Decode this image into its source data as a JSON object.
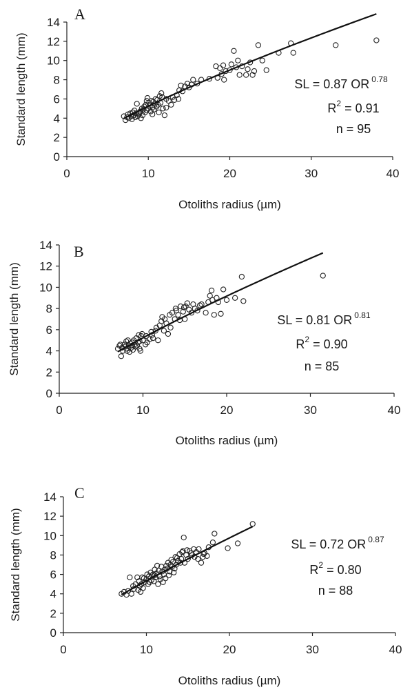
{
  "chart_data": [
    {
      "type": "scatter",
      "panel_label": "A",
      "xlabel": "Otoliths radius (µm)",
      "ylabel": "Standard length (mm)",
      "xlim": [
        0,
        40
      ],
      "ylim": [
        0,
        14
      ],
      "x_ticks": [
        "0",
        "10",
        "20",
        "30",
        "40"
      ],
      "y_ticks": [
        "0",
        "2",
        "4",
        "6",
        "8",
        "10",
        "12",
        "14"
      ],
      "equation": {
        "main": "SL = 0.87 OR",
        "exponent": "0.78",
        "r2_label": "R",
        "r2_sup": "2",
        "r2_value": " = 0.91",
        "n": "n = 95"
      },
      "fit": {
        "a": 0.87,
        "b": 0.78,
        "x_range": [
          7,
          38
        ]
      },
      "points": [
        [
          7.0,
          4.2
        ],
        [
          7.2,
          3.8
        ],
        [
          7.4,
          4.1
        ],
        [
          7.5,
          4.4
        ],
        [
          7.6,
          4.0
        ],
        [
          7.8,
          4.5
        ],
        [
          7.9,
          4.2
        ],
        [
          8.0,
          3.9
        ],
        [
          8.1,
          4.6
        ],
        [
          8.2,
          4.3
        ],
        [
          8.3,
          4.8
        ],
        [
          8.4,
          4.1
        ],
        [
          8.5,
          4.5
        ],
        [
          8.6,
          5.5
        ],
        [
          8.7,
          4.2
        ],
        [
          8.8,
          4.4
        ],
        [
          9.0,
          4.7
        ],
        [
          9.1,
          4.0
        ],
        [
          9.2,
          5.0
        ],
        [
          9.3,
          4.3
        ],
        [
          9.4,
          4.9
        ],
        [
          9.5,
          5.2
        ],
        [
          9.6,
          4.6
        ],
        [
          9.7,
          5.4
        ],
        [
          9.8,
          4.8
        ],
        [
          9.9,
          6.1
        ],
        [
          10.0,
          5.0
        ],
        [
          10.1,
          5.6
        ],
        [
          10.2,
          5.3
        ],
        [
          10.3,
          4.7
        ],
        [
          10.4,
          5.8
        ],
        [
          10.5,
          5.1
        ],
        [
          10.6,
          5.7
        ],
        [
          10.7,
          4.9
        ],
        [
          10.8,
          5.5
        ],
        [
          10.9,
          6.0
        ],
        [
          11.0,
          5.2
        ],
        [
          11.1,
          5.9
        ],
        [
          11.2,
          5.4
        ],
        [
          11.3,
          4.6
        ],
        [
          11.4,
          6.3
        ],
        [
          11.5,
          5.6
        ],
        [
          11.6,
          6.6
        ],
        [
          11.8,
          5.0
        ],
        [
          12.0,
          4.3
        ],
        [
          12.2,
          6.0
        ],
        [
          12.5,
          5.8
        ],
        [
          12.8,
          5.4
        ],
        [
          13.0,
          6.2
        ],
        [
          13.2,
          5.9
        ],
        [
          13.5,
          6.4
        ],
        [
          13.7,
          6.0
        ],
        [
          14.0,
          7.4
        ],
        [
          14.2,
          6.8
        ],
        [
          14.5,
          7.3
        ],
        [
          14.8,
          7.6
        ],
        [
          15.0,
          7.2
        ],
        [
          15.3,
          7.5
        ],
        [
          15.5,
          8.0
        ],
        [
          16.0,
          7.6
        ],
        [
          18.5,
          8.2
        ],
        [
          18.8,
          9.2
        ],
        [
          19.0,
          8.6
        ],
        [
          19.2,
          9.5
        ],
        [
          19.5,
          8.9
        ],
        [
          20.0,
          9.0
        ],
        [
          20.2,
          9.6
        ],
        [
          20.5,
          11.0
        ],
        [
          20.8,
          9.3
        ],
        [
          21.0,
          10.0
        ],
        [
          21.2,
          8.5
        ],
        [
          21.5,
          9.4
        ],
        [
          22.0,
          8.5
        ],
        [
          22.2,
          9.1
        ],
        [
          22.5,
          9.8
        ],
        [
          22.8,
          8.5
        ],
        [
          23.0,
          8.9
        ],
        [
          23.5,
          11.6
        ],
        [
          24.0,
          10.0
        ],
        [
          24.5,
          9.0
        ],
        [
          26.0,
          10.8
        ],
        [
          27.5,
          11.8
        ],
        [
          27.8,
          10.8
        ],
        [
          33.0,
          11.6
        ],
        [
          38.0,
          12.1
        ],
        [
          18.3,
          9.4
        ],
        [
          19.3,
          8.0
        ],
        [
          17.5,
          8.1
        ],
        [
          13.8,
          6.9
        ],
        [
          12.2,
          5.1
        ],
        [
          10.5,
          4.4
        ],
        [
          9.8,
          5.8
        ],
        [
          8.9,
          4.5
        ],
        [
          11.7,
          6.2
        ],
        [
          16.5,
          8.0
        ]
      ]
    },
    {
      "type": "scatter",
      "panel_label": "B",
      "xlabel": "Otoliths radius (µm)",
      "ylabel": "Standard length (mm)",
      "xlim": [
        0,
        40
      ],
      "ylim": [
        0,
        14
      ],
      "x_ticks": [
        "0",
        "10",
        "20",
        "30",
        "40"
      ],
      "y_ticks": [
        "0",
        "2",
        "4",
        "6",
        "8",
        "10",
        "12",
        "14"
      ],
      "equation": {
        "main": "SL = 0.81 OR",
        "exponent": "0.81",
        "r2_label": "R",
        "r2_sup": "2",
        "r2_value": " = 0.90",
        "n": "n = 85"
      },
      "fit": {
        "a": 0.81,
        "b": 0.81,
        "x_range": [
          7,
          31.5
        ]
      },
      "points": [
        [
          7.0,
          4.2
        ],
        [
          7.2,
          4.5
        ],
        [
          7.4,
          3.5
        ],
        [
          7.5,
          4.3
        ],
        [
          7.6,
          4.0
        ],
        [
          7.8,
          4.6
        ],
        [
          7.9,
          4.4
        ],
        [
          8.0,
          4.9
        ],
        [
          8.1,
          4.2
        ],
        [
          8.2,
          5.0
        ],
        [
          8.3,
          4.5
        ],
        [
          8.4,
          3.9
        ],
        [
          8.5,
          4.7
        ],
        [
          8.6,
          4.3
        ],
        [
          8.7,
          4.8
        ],
        [
          8.8,
          4.1
        ],
        [
          9.0,
          4.6
        ],
        [
          9.1,
          4.4
        ],
        [
          9.2,
          5.2
        ],
        [
          9.3,
          4.5
        ],
        [
          9.4,
          4.8
        ],
        [
          9.5,
          5.5
        ],
        [
          9.6,
          4.9
        ],
        [
          9.7,
          4.0
        ],
        [
          9.8,
          5.4
        ],
        [
          10.0,
          5.0
        ],
        [
          10.3,
          4.6
        ],
        [
          10.5,
          4.8
        ],
        [
          11.0,
          5.8
        ],
        [
          11.2,
          5.2
        ],
        [
          11.5,
          5.9
        ],
        [
          11.8,
          5.0
        ],
        [
          12.0,
          6.4
        ],
        [
          12.3,
          7.2
        ],
        [
          12.5,
          5.9
        ],
        [
          12.8,
          6.6
        ],
        [
          13.0,
          5.6
        ],
        [
          13.3,
          6.2
        ],
        [
          13.5,
          7.6
        ],
        [
          13.8,
          7.0
        ],
        [
          14.0,
          7.8
        ],
        [
          14.2,
          7.4
        ],
        [
          14.5,
          8.2
        ],
        [
          14.8,
          7.7
        ],
        [
          15.0,
          7.0
        ],
        [
          15.3,
          8.5
        ],
        [
          15.5,
          7.9
        ],
        [
          15.8,
          7.6
        ],
        [
          16.0,
          8.4
        ],
        [
          16.5,
          7.8
        ],
        [
          17.0,
          8.4
        ],
        [
          17.5,
          7.6
        ],
        [
          18.0,
          9.2
        ],
        [
          18.3,
          8.8
        ],
        [
          18.5,
          7.4
        ],
        [
          18.8,
          9.0
        ],
        [
          19.0,
          8.6
        ],
        [
          19.3,
          7.5
        ],
        [
          20.0,
          8.8
        ],
        [
          21.0,
          9.0
        ],
        [
          22.0,
          8.7
        ],
        [
          21.8,
          11.0
        ],
        [
          31.5,
          11.1
        ],
        [
          8.9,
          5.0
        ],
        [
          10.8,
          5.1
        ],
        [
          12.2,
          6.8
        ],
        [
          13.2,
          7.4
        ],
        [
          14.4,
          6.9
        ],
        [
          16.2,
          8.0
        ],
        [
          17.8,
          8.6
        ],
        [
          9.9,
          5.6
        ],
        [
          8.1,
          4.0
        ],
        [
          7.3,
          4.6
        ],
        [
          11.6,
          6.2
        ],
        [
          13.9,
          8.0
        ],
        [
          15.1,
          8.2
        ],
        [
          18.2,
          9.7
        ],
        [
          12.6,
          7.0
        ],
        [
          10.4,
          5.4
        ],
        [
          9.6,
          4.2
        ],
        [
          8.7,
          4.5
        ],
        [
          14.9,
          8.1
        ],
        [
          16.8,
          8.3
        ],
        [
          19.6,
          9.8
        ],
        [
          11.1,
          5.5
        ]
      ]
    },
    {
      "type": "scatter",
      "panel_label": "C",
      "xlabel": "Otoliths radius (µm)",
      "ylabel": "Standard length (mm)",
      "xlim": [
        0,
        40
      ],
      "ylim": [
        0,
        14
      ],
      "x_ticks": [
        "0",
        "10",
        "20",
        "30",
        "40"
      ],
      "y_ticks": [
        "0",
        "2",
        "4",
        "6",
        "8",
        "10",
        "12",
        "14"
      ],
      "equation": {
        "main": "SL = 0.72 OR",
        "exponent": "0.87",
        "r2_label": "R",
        "r2_sup": "2",
        "r2_value": " = 0.80",
        "n": "n = 88"
      },
      "fit": {
        "a": 0.72,
        "b": 0.87,
        "x_range": [
          7,
          22.8
        ]
      },
      "points": [
        [
          7.0,
          4.0
        ],
        [
          7.3,
          4.2
        ],
        [
          7.6,
          3.9
        ],
        [
          7.8,
          4.3
        ],
        [
          8.0,
          5.7
        ],
        [
          8.2,
          4.0
        ],
        [
          8.5,
          4.5
        ],
        [
          8.7,
          5.0
        ],
        [
          8.9,
          5.7
        ],
        [
          9.0,
          4.4
        ],
        [
          9.1,
          5.3
        ],
        [
          9.2,
          4.8
        ],
        [
          9.4,
          5.0
        ],
        [
          9.5,
          5.7
        ],
        [
          9.6,
          4.6
        ],
        [
          9.8,
          5.2
        ],
        [
          10.0,
          5.5
        ],
        [
          10.2,
          5.0
        ],
        [
          10.3,
          5.8
        ],
        [
          10.5,
          6.2
        ],
        [
          10.6,
          5.4
        ],
        [
          10.8,
          6.0
        ],
        [
          10.9,
          5.3
        ],
        [
          11.0,
          6.5
        ],
        [
          11.1,
          5.7
        ],
        [
          11.2,
          6.1
        ],
        [
          11.4,
          5.0
        ],
        [
          11.5,
          6.4
        ],
        [
          11.6,
          5.8
        ],
        [
          11.8,
          6.8
        ],
        [
          12.0,
          5.2
        ],
        [
          12.1,
          6.0
        ],
        [
          12.3,
          5.6
        ],
        [
          12.5,
          6.6
        ],
        [
          12.6,
          7.2
        ],
        [
          12.8,
          6.3
        ],
        [
          13.0,
          7.5
        ],
        [
          13.1,
          6.8
        ],
        [
          13.3,
          6.2
        ],
        [
          13.5,
          7.8
        ],
        [
          13.6,
          7.0
        ],
        [
          13.8,
          7.4
        ],
        [
          14.0,
          8.1
        ],
        [
          14.2,
          7.6
        ],
        [
          14.4,
          8.4
        ],
        [
          14.5,
          9.8
        ],
        [
          14.6,
          7.2
        ],
        [
          14.8,
          8.0
        ],
        [
          15.0,
          7.6
        ],
        [
          15.2,
          8.4
        ],
        [
          15.5,
          8.0
        ],
        [
          15.8,
          7.8
        ],
        [
          16.0,
          8.3
        ],
        [
          16.3,
          8.6
        ],
        [
          16.6,
          7.2
        ],
        [
          16.8,
          7.8
        ],
        [
          17.0,
          8.2
        ],
        [
          17.3,
          7.9
        ],
        [
          17.5,
          8.8
        ],
        [
          18.0,
          9.3
        ],
        [
          18.2,
          10.2
        ],
        [
          19.8,
          8.7
        ],
        [
          21.0,
          9.2
        ],
        [
          22.8,
          11.2
        ],
        [
          10.1,
          6.0
        ],
        [
          11.3,
          6.9
        ],
        [
          12.2,
          6.5
        ],
        [
          12.9,
          7.0
        ],
        [
          13.4,
          6.6
        ],
        [
          14.1,
          7.2
        ],
        [
          15.4,
          8.2
        ],
        [
          16.2,
          7.6
        ],
        [
          9.3,
          4.2
        ],
        [
          10.7,
          5.9
        ],
        [
          11.7,
          5.5
        ],
        [
          12.4,
          6.9
        ],
        [
          13.2,
          7.3
        ],
        [
          14.3,
          8.3
        ],
        [
          8.4,
          4.8
        ],
        [
          9.7,
          5.6
        ],
        [
          11.9,
          6.3
        ],
        [
          12.7,
          5.9
        ],
        [
          13.7,
          7.7
        ],
        [
          14.9,
          8.5
        ],
        [
          15.7,
          8.6
        ],
        [
          10.4,
          5.2
        ],
        [
          11.0,
          5.9
        ],
        [
          16.9,
          8.1
        ]
      ]
    }
  ]
}
